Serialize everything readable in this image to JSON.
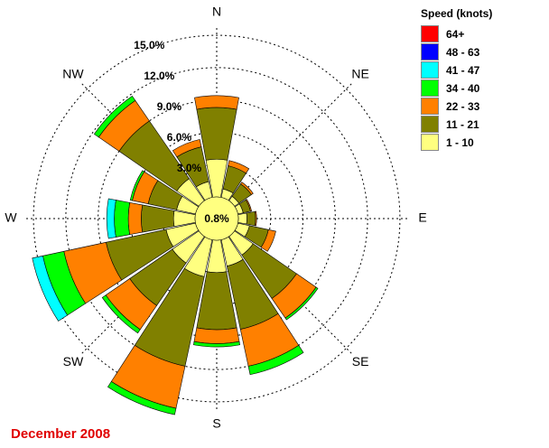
{
  "footer_text": "December 2008",
  "legend": {
    "title": "Speed (knots)",
    "items": [
      {
        "label": "64+",
        "color": "#ff0000"
      },
      {
        "label": "48 - 63",
        "color": "#0000ff"
      },
      {
        "label": "41 - 47",
        "color": "#00ffff"
      },
      {
        "label": "34 - 40",
        "color": "#00ff00"
      },
      {
        "label": "22 - 33",
        "color": "#ff8000"
      },
      {
        "label": "11 - 21",
        "color": "#808000"
      },
      {
        "label": "1 - 10",
        "color": "#ffff80"
      }
    ]
  },
  "chart_data": {
    "type": "wind-rose",
    "calm_label": "0.8%",
    "ring_labels": [
      "3.0%",
      "6.0%",
      "9.0%",
      "12.0%",
      "15.0%"
    ],
    "ring_values": [
      3,
      6,
      9,
      12,
      15
    ],
    "radial_max": 16.6,
    "compass_labels": [
      "N",
      "NE",
      "E",
      "SE",
      "S",
      "SW",
      "W",
      "NW"
    ],
    "directions": [
      "N",
      "NNE",
      "NE",
      "ENE",
      "E",
      "ESE",
      "SE",
      "SSE",
      "S",
      "SSW",
      "SW",
      "WSW",
      "W",
      "WNW",
      "NW",
      "NNW"
    ],
    "speed_bins": [
      "1 - 10",
      "11 - 21",
      "22 - 33",
      "34 - 40",
      "41 - 47",
      "48 - 63",
      "64+"
    ],
    "units": "cumulative percent",
    "cumulative": [
      [
        3.5,
        8.3,
        9.4,
        9.4,
        9.4,
        9.4,
        9.4
      ],
      [
        0.8,
        3.0,
        3.5,
        3.5,
        3.5,
        3.5,
        3.5
      ],
      [
        0.5,
        1.9,
        2.1,
        2.1,
        2.1,
        2.1,
        2.1
      ],
      [
        0.5,
        1.2,
        1.3,
        1.3,
        1.3,
        1.3,
        1.3
      ],
      [
        0.8,
        1.6,
        1.7,
        1.7,
        1.7,
        1.7,
        1.7
      ],
      [
        1.1,
        2.9,
        3.6,
        3.6,
        3.6,
        3.6,
        3.6
      ],
      [
        2.1,
        7.0,
        9.2,
        9.4,
        9.4,
        9.4,
        9.4
      ],
      [
        2.5,
        8.5,
        12.0,
        12.8,
        12.8,
        12.8,
        12.8
      ],
      [
        3.0,
        8.3,
        9.6,
        9.9,
        9.9,
        9.9,
        9.9
      ],
      [
        3.5,
        12.0,
        16.0,
        16.6,
        16.6,
        16.6,
        16.6
      ],
      [
        3.0,
        7.8,
        10.5,
        10.9,
        10.9,
        10.9,
        10.9
      ],
      [
        2.8,
        8.5,
        12.5,
        14.5,
        15.5,
        15.5,
        15.5
      ],
      [
        2.0,
        5.0,
        6.2,
        7.5,
        8.2,
        8.2,
        8.2
      ],
      [
        1.8,
        4.5,
        6.0,
        6.2,
        6.2,
        6.2,
        6.2
      ],
      [
        2.5,
        9.0,
        11.3,
        11.8,
        11.8,
        11.8,
        11.8
      ],
      [
        1.5,
        4.8,
        5.5,
        5.5,
        5.5,
        5.5,
        5.5
      ]
    ]
  }
}
